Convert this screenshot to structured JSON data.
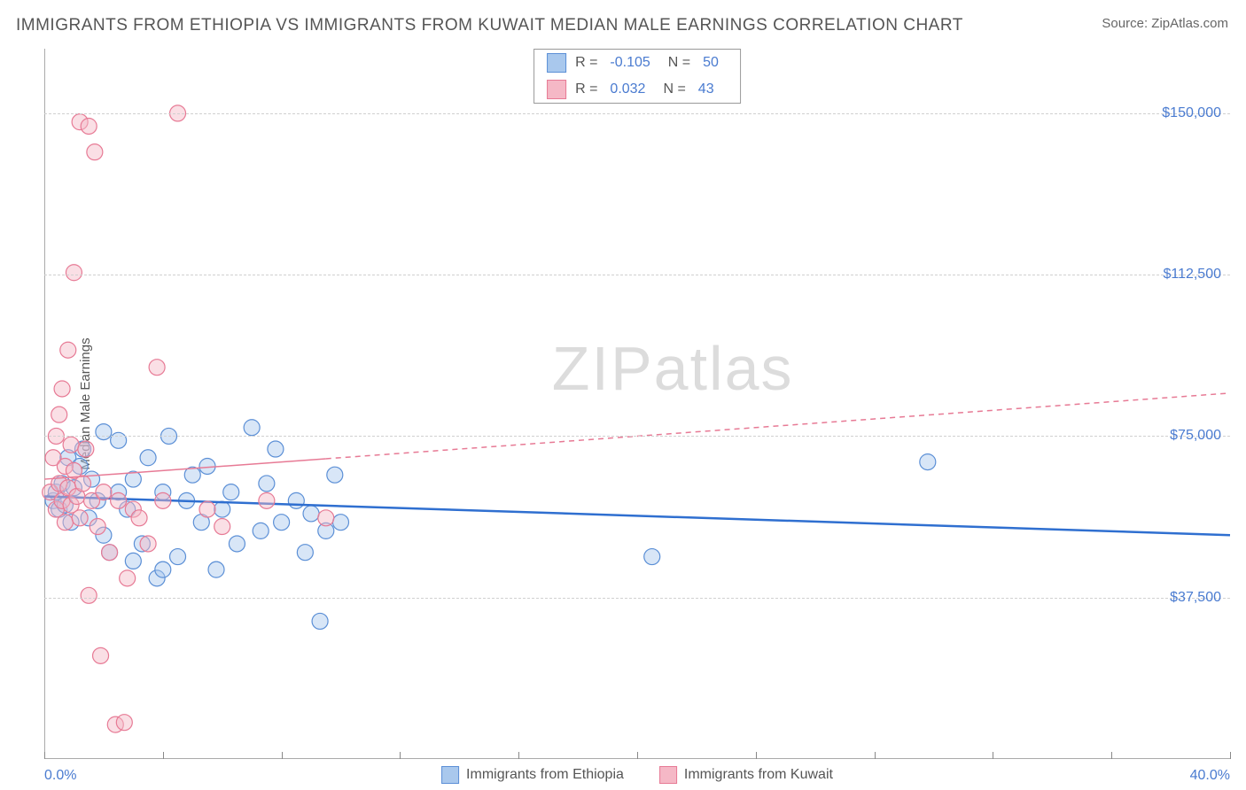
{
  "title": "IMMIGRANTS FROM ETHIOPIA VS IMMIGRANTS FROM KUWAIT MEDIAN MALE EARNINGS CORRELATION CHART",
  "source_label": "Source: ",
  "source_name": "ZipAtlas.com",
  "watermark_zip": "ZIP",
  "watermark_atlas": "atlas",
  "chart": {
    "type": "scatter",
    "ylabel": "Median Male Earnings",
    "xlim": [
      0,
      40
    ],
    "ylim": [
      0,
      165000
    ],
    "x_tick_min_label": "0.0%",
    "x_tick_max_label": "40.0%",
    "x_ticks": [
      0,
      4,
      8,
      12,
      16,
      20,
      24,
      28,
      32,
      36,
      40
    ],
    "y_ticks": [
      {
        "value": 37500,
        "label": "$37,500"
      },
      {
        "value": 75000,
        "label": "$75,000"
      },
      {
        "value": 112500,
        "label": "$112,500"
      },
      {
        "value": 150000,
        "label": "$150,000"
      }
    ],
    "grid_color": "#d0d0d0",
    "background_color": "#ffffff",
    "marker_radius": 9,
    "marker_opacity": 0.45,
    "series": [
      {
        "name": "Immigrants from Ethiopia",
        "color_fill": "#a9c8ed",
        "color_stroke": "#5b8fd6",
        "r_label": "R = ",
        "r_value": "-0.105",
        "n_label": "N = ",
        "n_value": "50",
        "trend": {
          "x1": 0,
          "y1": 61000,
          "x2": 40,
          "y2": 52000,
          "dash": "none",
          "width": 2.5,
          "color": "#2f6fd0",
          "solid_to_x": 40
        },
        "points": [
          [
            0.3,
            60000
          ],
          [
            0.4,
            62000
          ],
          [
            0.5,
            58000
          ],
          [
            0.6,
            64000
          ],
          [
            0.7,
            59000
          ],
          [
            0.8,
            70000
          ],
          [
            0.9,
            55000
          ],
          [
            1.0,
            63000
          ],
          [
            1.2,
            68000
          ],
          [
            1.3,
            72000
          ],
          [
            1.5,
            56000
          ],
          [
            1.6,
            65000
          ],
          [
            1.8,
            60000
          ],
          [
            2.0,
            76000
          ],
          [
            2.0,
            52000
          ],
          [
            2.2,
            48000
          ],
          [
            2.5,
            62000
          ],
          [
            2.5,
            74000
          ],
          [
            2.8,
            58000
          ],
          [
            3.0,
            46000
          ],
          [
            3.0,
            65000
          ],
          [
            3.3,
            50000
          ],
          [
            3.5,
            70000
          ],
          [
            3.8,
            42000
          ],
          [
            4.0,
            62000
          ],
          [
            4.2,
            75000
          ],
          [
            4.5,
            47000
          ],
          [
            4.8,
            60000
          ],
          [
            5.0,
            66000
          ],
          [
            5.3,
            55000
          ],
          [
            5.5,
            68000
          ],
          [
            5.8,
            44000
          ],
          [
            6.0,
            58000
          ],
          [
            6.3,
            62000
          ],
          [
            6.5,
            50000
          ],
          [
            7.0,
            77000
          ],
          [
            7.3,
            53000
          ],
          [
            7.5,
            64000
          ],
          [
            7.8,
            72000
          ],
          [
            8.0,
            55000
          ],
          [
            8.5,
            60000
          ],
          [
            8.8,
            48000
          ],
          [
            9.0,
            57000
          ],
          [
            9.3,
            32000
          ],
          [
            9.5,
            53000
          ],
          [
            9.8,
            66000
          ],
          [
            10.0,
            55000
          ],
          [
            20.5,
            47000
          ],
          [
            29.8,
            69000
          ],
          [
            4.0,
            44000
          ]
        ]
      },
      {
        "name": "Immigrants from Kuwait",
        "color_fill": "#f5b8c6",
        "color_stroke": "#e77a95",
        "r_label": "R = ",
        "r_value": "0.032",
        "n_label": "N = ",
        "n_value": "43",
        "trend": {
          "x1": 0,
          "y1": 65000,
          "x2": 40,
          "y2": 85000,
          "dash": "6,5",
          "width": 1.5,
          "color": "#e77a95",
          "solid_to_x": 9.5
        },
        "points": [
          [
            0.2,
            62000
          ],
          [
            0.3,
            70000
          ],
          [
            0.4,
            58000
          ],
          [
            0.4,
            75000
          ],
          [
            0.5,
            64000
          ],
          [
            0.5,
            80000
          ],
          [
            0.6,
            60000
          ],
          [
            0.6,
            86000
          ],
          [
            0.7,
            55000
          ],
          [
            0.7,
            68000
          ],
          [
            0.8,
            63000
          ],
          [
            0.8,
            95000
          ],
          [
            0.9,
            59000
          ],
          [
            0.9,
            73000
          ],
          [
            1.0,
            67000
          ],
          [
            1.0,
            113000
          ],
          [
            1.1,
            61000
          ],
          [
            1.2,
            56000
          ],
          [
            1.2,
            148000
          ],
          [
            1.3,
            64000
          ],
          [
            1.4,
            72000
          ],
          [
            1.5,
            147000
          ],
          [
            1.5,
            38000
          ],
          [
            1.6,
            60000
          ],
          [
            1.7,
            141000
          ],
          [
            1.8,
            54000
          ],
          [
            1.9,
            24000
          ],
          [
            2.0,
            62000
          ],
          [
            2.2,
            48000
          ],
          [
            2.4,
            8000
          ],
          [
            2.5,
            60000
          ],
          [
            2.7,
            8500
          ],
          [
            2.8,
            42000
          ],
          [
            3.0,
            58000
          ],
          [
            3.2,
            56000
          ],
          [
            3.5,
            50000
          ],
          [
            3.8,
            91000
          ],
          [
            4.0,
            60000
          ],
          [
            4.5,
            150000
          ],
          [
            5.5,
            58000
          ],
          [
            6.0,
            54000
          ],
          [
            7.5,
            60000
          ],
          [
            9.5,
            56000
          ]
        ]
      }
    ]
  }
}
